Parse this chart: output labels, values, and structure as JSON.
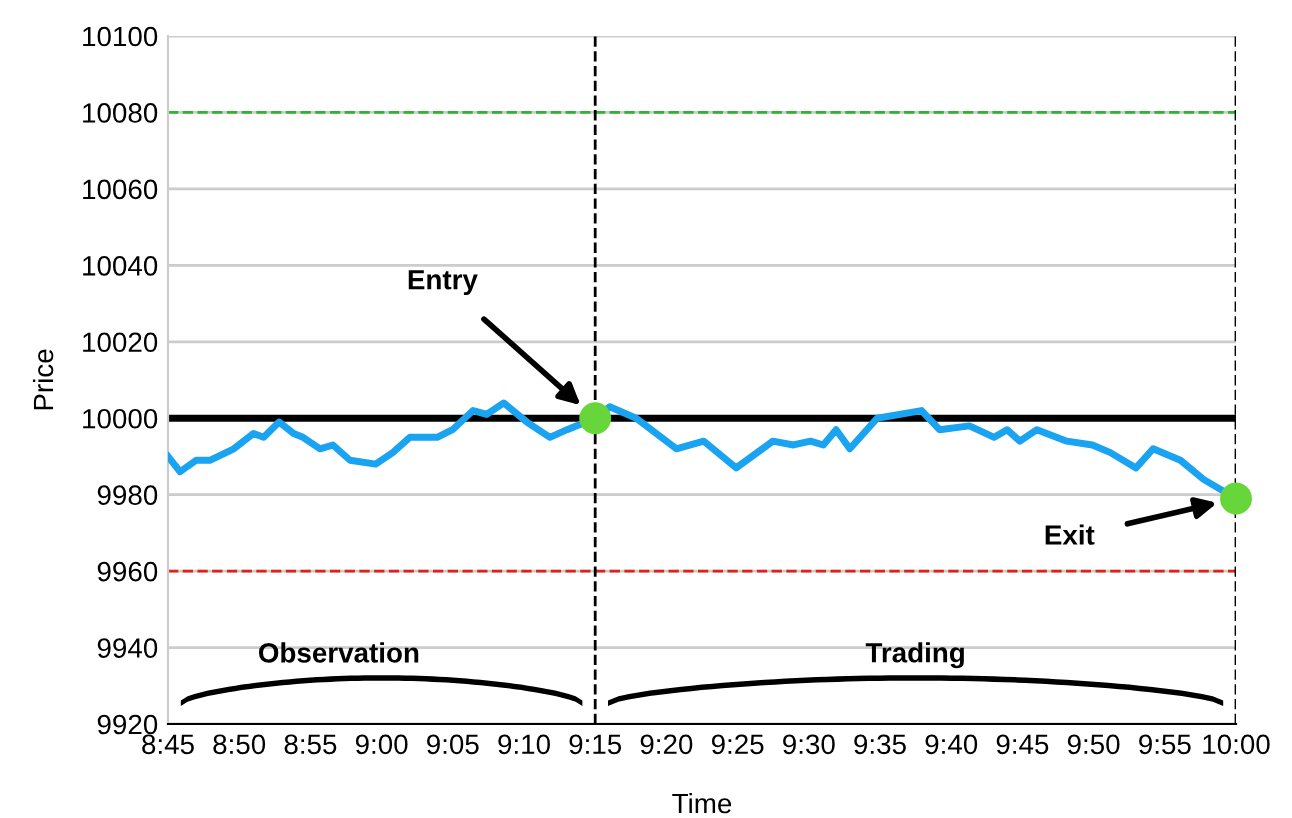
{
  "chart_data": {
    "type": "line",
    "xlabel": "Time",
    "ylabel": "Price",
    "series": [
      {
        "color": "#1aa3f0",
        "x": [
          8.75,
          8.764,
          8.783,
          8.799,
          8.827,
          8.85,
          8.862,
          8.88,
          8.897,
          8.908,
          8.928,
          8.943,
          8.963,
          8.993,
          9.013,
          9.033,
          9.065,
          9.083,
          9.107,
          9.123,
          9.143,
          9.17,
          9.197,
          9.217,
          9.25,
          9.267,
          9.298,
          9.345,
          9.377,
          9.415,
          9.458,
          9.482,
          9.502,
          9.517,
          9.532,
          9.548,
          9.58,
          9.632,
          9.653,
          9.688,
          9.717,
          9.732,
          9.747,
          9.767,
          9.802,
          9.832,
          9.853,
          9.883,
          9.903,
          9.935,
          9.962,
          10.0
        ],
        "values": [
          9990,
          9986,
          9989,
          9989,
          9992,
          9996,
          9995,
          9999,
          9996,
          9995,
          9992,
          9993,
          9989,
          9988,
          9991,
          9995,
          9995,
          9997,
          10002,
          10001,
          10004,
          9999,
          9995,
          9997,
          10000,
          10003,
          10000,
          9992,
          9994,
          9987,
          9994,
          9993,
          9994,
          9993,
          9997,
          9992,
          10000,
          10002,
          9997,
          9998,
          9995,
          9997,
          9994,
          9997,
          9994,
          9993,
          9991,
          9987,
          9992,
          9989,
          9984,
          9979
        ]
      },
      {
        "type": "scatter",
        "marker": "circle",
        "color": "#66d63a",
        "x": [
          9.25,
          10.0
        ],
        "values": [
          10000,
          9979
        ]
      }
    ],
    "xlim": [
      8.75,
      10.0
    ],
    "xticks": [
      {
        "value": 8.75,
        "label": "8:45"
      },
      {
        "value": 8.8333,
        "label": "8:50"
      },
      {
        "value": 8.9167,
        "label": "8:55"
      },
      {
        "value": 9.0,
        "label": "9:00"
      },
      {
        "value": 9.0833,
        "label": "9:05"
      },
      {
        "value": 9.1667,
        "label": "9:10"
      },
      {
        "value": 9.25,
        "label": "9:15"
      },
      {
        "value": 9.3333,
        "label": "9:20"
      },
      {
        "value": 9.4167,
        "label": "9:25"
      },
      {
        "value": 9.5,
        "label": "9:30"
      },
      {
        "value": 9.5833,
        "label": "9:35"
      },
      {
        "value": 9.6667,
        "label": "9:40"
      },
      {
        "value": 9.75,
        "label": "9:45"
      },
      {
        "value": 9.8333,
        "label": "9:50"
      },
      {
        "value": 9.9167,
        "label": "9:55"
      },
      {
        "value": 10.0,
        "label": "10:00"
      }
    ],
    "ylim": [
      9920,
      10100
    ],
    "yticks": [
      9920,
      9940,
      9960,
      9980,
      10000,
      10020,
      10040,
      10060,
      10080,
      10100
    ],
    "grid": "y",
    "line_style": "solid",
    "ref_lines": [
      {
        "axis": "y",
        "value": 10080,
        "color": "#2db52d",
        "line_style": "dashed"
      },
      {
        "axis": "y",
        "value": 9960,
        "color": "#e0201b",
        "line_style": "dashed"
      },
      {
        "axis": "y",
        "value": 10000,
        "color": "#000000",
        "line_style": "solid"
      },
      {
        "axis": "x",
        "value": 9.25,
        "color": "#000000",
        "line_style": "dashed"
      },
      {
        "axis": "x",
        "value": 10.0,
        "color": "#000000",
        "line_style": "dashed"
      }
    ],
    "annotations": [
      "Entry",
      "Exit",
      "Observation",
      "Trading"
    ]
  }
}
